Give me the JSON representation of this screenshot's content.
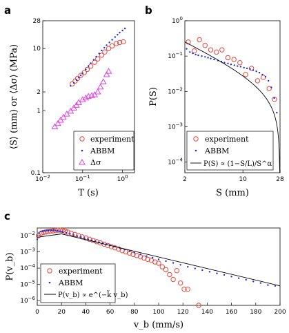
{
  "colors": {
    "red": "#e8443a",
    "blue": "#1b2fd6",
    "magenta": "#e040e0",
    "black": "#000000"
  },
  "chart_data": [
    {
      "panel_label": "a",
      "type": "scatter",
      "xscale": "log",
      "yscale": "log",
      "xlim": [
        0.01,
        2
      ],
      "ylim": [
        0.1,
        28
      ],
      "xlabel": "T (s)",
      "ylabel": "⟨S⟩ (mm) or ⟨Δσ⟩ (MPa)",
      "xtick_labels": [
        "10^-2",
        "10^-1",
        "10^0"
      ],
      "ytick_labels": [
        "0.1",
        "1",
        "2",
        "10",
        "28"
      ],
      "legend": {
        "placement": "bottom-right"
      },
      "series": [
        {
          "name": "experiment",
          "marker": "circle",
          "color": "red",
          "x": [
            0.055,
            0.065,
            0.075,
            0.09,
            0.11,
            0.13,
            0.16,
            0.2,
            0.24,
            0.3,
            0.36,
            0.45,
            0.55,
            0.7,
            0.85,
            1.05
          ],
          "y": [
            2.7,
            3.0,
            3.3,
            3.7,
            4.1,
            4.6,
            5.2,
            6.0,
            6.8,
            7.8,
            8.8,
            10.0,
            11.0,
            12.0,
            12.5,
            12.8
          ]
        },
        {
          "name": "ABBM",
          "marker": "dot",
          "color": "blue",
          "x": [
            0.05,
            0.06,
            0.07,
            0.08,
            0.09,
            0.1,
            0.12,
            0.14,
            0.16,
            0.19,
            0.22,
            0.26,
            0.3,
            0.35,
            0.4,
            0.47,
            0.55,
            0.65,
            0.75,
            0.85,
            1.0,
            1.15
          ],
          "y": [
            2.5,
            2.8,
            3.1,
            3.4,
            3.7,
            4.0,
            4.6,
            5.2,
            5.8,
            6.6,
            7.4,
            8.3,
            9.3,
            10.3,
            11.3,
            12.5,
            13.8,
            15.3,
            16.7,
            18.0,
            19.5,
            21.0
          ]
        },
        {
          "name": "Δσ",
          "marker": "triangle",
          "color": "magenta",
          "x": [
            0.02,
            0.024,
            0.028,
            0.033,
            0.04,
            0.05,
            0.06,
            0.07,
            0.08,
            0.1,
            0.12,
            0.14,
            0.17,
            0.2,
            0.24,
            0.28,
            0.33,
            0.4,
            0.45
          ],
          "y": [
            0.55,
            0.62,
            0.7,
            0.78,
            0.88,
            0.98,
            1.1,
            1.22,
            1.35,
            1.5,
            1.6,
            1.7,
            1.75,
            1.8,
            2.0,
            2.4,
            2.9,
            3.8,
            4.3
          ]
        }
      ]
    },
    {
      "panel_label": "b",
      "type": "scatter",
      "xscale": "log",
      "yscale": "log",
      "xlim": [
        2,
        28
      ],
      "ylim": [
        5e-05,
        1
      ],
      "xlabel": "S (mm)",
      "ylabel": "P(S)",
      "xtick_labels": [
        "2",
        "10",
        "28"
      ],
      "ytick_labels": [
        "10^0",
        "10^-1",
        "10^-2",
        "10^-3",
        "10^-4"
      ],
      "legend": {
        "placement": "bottom-right"
      },
      "series": [
        {
          "name": "experiment",
          "marker": "circle",
          "color": "red",
          "x": [
            2.2,
            2.6,
            3.0,
            3.5,
            4.1,
            4.8,
            5.6,
            6.6,
            7.8,
            9.2,
            10.8,
            12.7,
            15.0,
            17.6,
            20.7,
            24.0
          ],
          "y": [
            0.25,
            0.14,
            0.29,
            0.2,
            0.15,
            0.13,
            0.15,
            0.09,
            0.08,
            0.065,
            0.03,
            0.045,
            0.02,
            0.025,
            0.012,
            0.006
          ]
        },
        {
          "name": "ABBM",
          "marker": "dot",
          "color": "blue",
          "x": [
            2.1,
            2.3,
            2.5,
            2.7,
            2.9,
            3.2,
            3.5,
            3.8,
            4.1,
            4.5,
            5.0,
            5.5,
            6.0,
            6.6,
            7.2,
            7.9,
            8.6,
            9.4,
            10.3,
            11.2,
            12.2,
            13.3,
            14.5,
            15.8,
            17.2,
            18.7,
            20.3,
            22.0,
            23.8,
            25.6
          ],
          "y": [
            0.16,
            0.13,
            0.12,
            0.11,
            0.105,
            0.1,
            0.095,
            0.09,
            0.085,
            0.08,
            0.075,
            0.07,
            0.065,
            0.062,
            0.058,
            0.055,
            0.052,
            0.05,
            0.047,
            0.045,
            0.043,
            0.04,
            0.037,
            0.034,
            0.03,
            0.026,
            0.02,
            0.013,
            0.0065,
            0.0025
          ]
        },
        {
          "name": "P(S) ∝ (1−S/L)/S^α",
          "marker": "line",
          "color": "black",
          "alpha": 1.15,
          "L": 27.8,
          "amplitude": 0.6
        }
      ]
    },
    {
      "panel_label": "c",
      "type": "scatter",
      "xscale": "linear",
      "yscale": "log",
      "xlim": [
        0,
        200
      ],
      "ylim": [
        5e-07,
        0.03
      ],
      "xlabel": "v_b (mm/s)",
      "ylabel": "P(v_b)",
      "xtick_labels": [
        "0",
        "20",
        "40",
        "60",
        "80",
        "100",
        "120",
        "140",
        "160",
        "180",
        "200"
      ],
      "ytick_labels": [
        "10^-2",
        "10^-3",
        "10^-4",
        "10^-5",
        "10^-6"
      ],
      "legend": {
        "placement": "bottom-left"
      },
      "series": [
        {
          "name": "experiment",
          "marker": "circle",
          "color": "red",
          "x": [
            1,
            3,
            5,
            7,
            9,
            11,
            13,
            15,
            17,
            19,
            21,
            23,
            25,
            28,
            31,
            34,
            37,
            40,
            43,
            46,
            49,
            52,
            55,
            58,
            61,
            64,
            67,
            70,
            73,
            76,
            79,
            82,
            85,
            88,
            91,
            94,
            97,
            100,
            103,
            106,
            109,
            112,
            115,
            118,
            121,
            124,
            133
          ],
          "y": [
            0.01,
            0.014,
            0.016,
            0.017,
            0.018,
            0.019,
            0.02,
            0.021,
            0.022,
            0.022,
            0.021,
            0.019,
            0.017,
            0.014,
            0.012,
            0.01,
            0.0085,
            0.0072,
            0.006,
            0.005,
            0.0043,
            0.0036,
            0.003,
            0.0025,
            0.0021,
            0.0018,
            0.0015,
            0.0012,
            0.001,
            0.00085,
            0.0007,
            0.0006,
            0.0005,
            0.00042,
            0.00035,
            0.0003,
            0.00024,
            0.0002,
            0.00012,
            8e-05,
            4e-05,
            2e-05,
            7e-05,
            1.2e-05,
            5e-06,
            5e-06,
            5e-07
          ]
        },
        {
          "name": "ABBM",
          "marker": "dot",
          "color": "blue",
          "x": [
            0,
            1.5,
            3,
            4.5,
            6,
            7.5,
            9,
            10.5,
            12,
            13.5,
            15,
            16.5,
            18,
            19.5,
            21,
            24,
            27,
            30,
            33,
            36,
            39,
            42,
            45,
            48,
            51,
            54,
            57,
            60,
            64,
            68,
            72,
            76,
            80,
            85,
            90,
            95,
            100,
            106,
            112,
            118,
            124,
            130,
            136,
            142,
            148,
            154,
            160,
            166,
            172,
            178,
            184,
            190,
            196
          ],
          "y": [
            0.006,
            0.015,
            0.018,
            0.019,
            0.02,
            0.021,
            0.021,
            0.022,
            0.022,
            0.022,
            0.021,
            0.02,
            0.019,
            0.018,
            0.017,
            0.015,
            0.013,
            0.011,
            0.0095,
            0.0082,
            0.007,
            0.006,
            0.0052,
            0.0045,
            0.0039,
            0.0034,
            0.003,
            0.0026,
            0.0021,
            0.0017,
            0.0014,
            0.0011,
            0.0009,
            0.0007,
            0.00055,
            0.00044,
            0.00035,
            0.00027,
            0.00021,
            0.00016,
            0.00012,
            9.5e-05,
            7.5e-05,
            6e-05,
            4.7e-05,
            3.8e-05,
            3e-05,
            2.4e-05,
            1.9e-05,
            1.5e-05,
            1.2e-05,
            9e-06,
            8e-06
          ]
        },
        {
          "name": "P(v_b) ∝ e^(−k̃ v_b)",
          "marker": "line",
          "color": "black",
          "x": [
            0,
            20,
            200
          ],
          "y": [
            0.008,
            0.013,
            8e-06
          ]
        }
      ]
    }
  ]
}
